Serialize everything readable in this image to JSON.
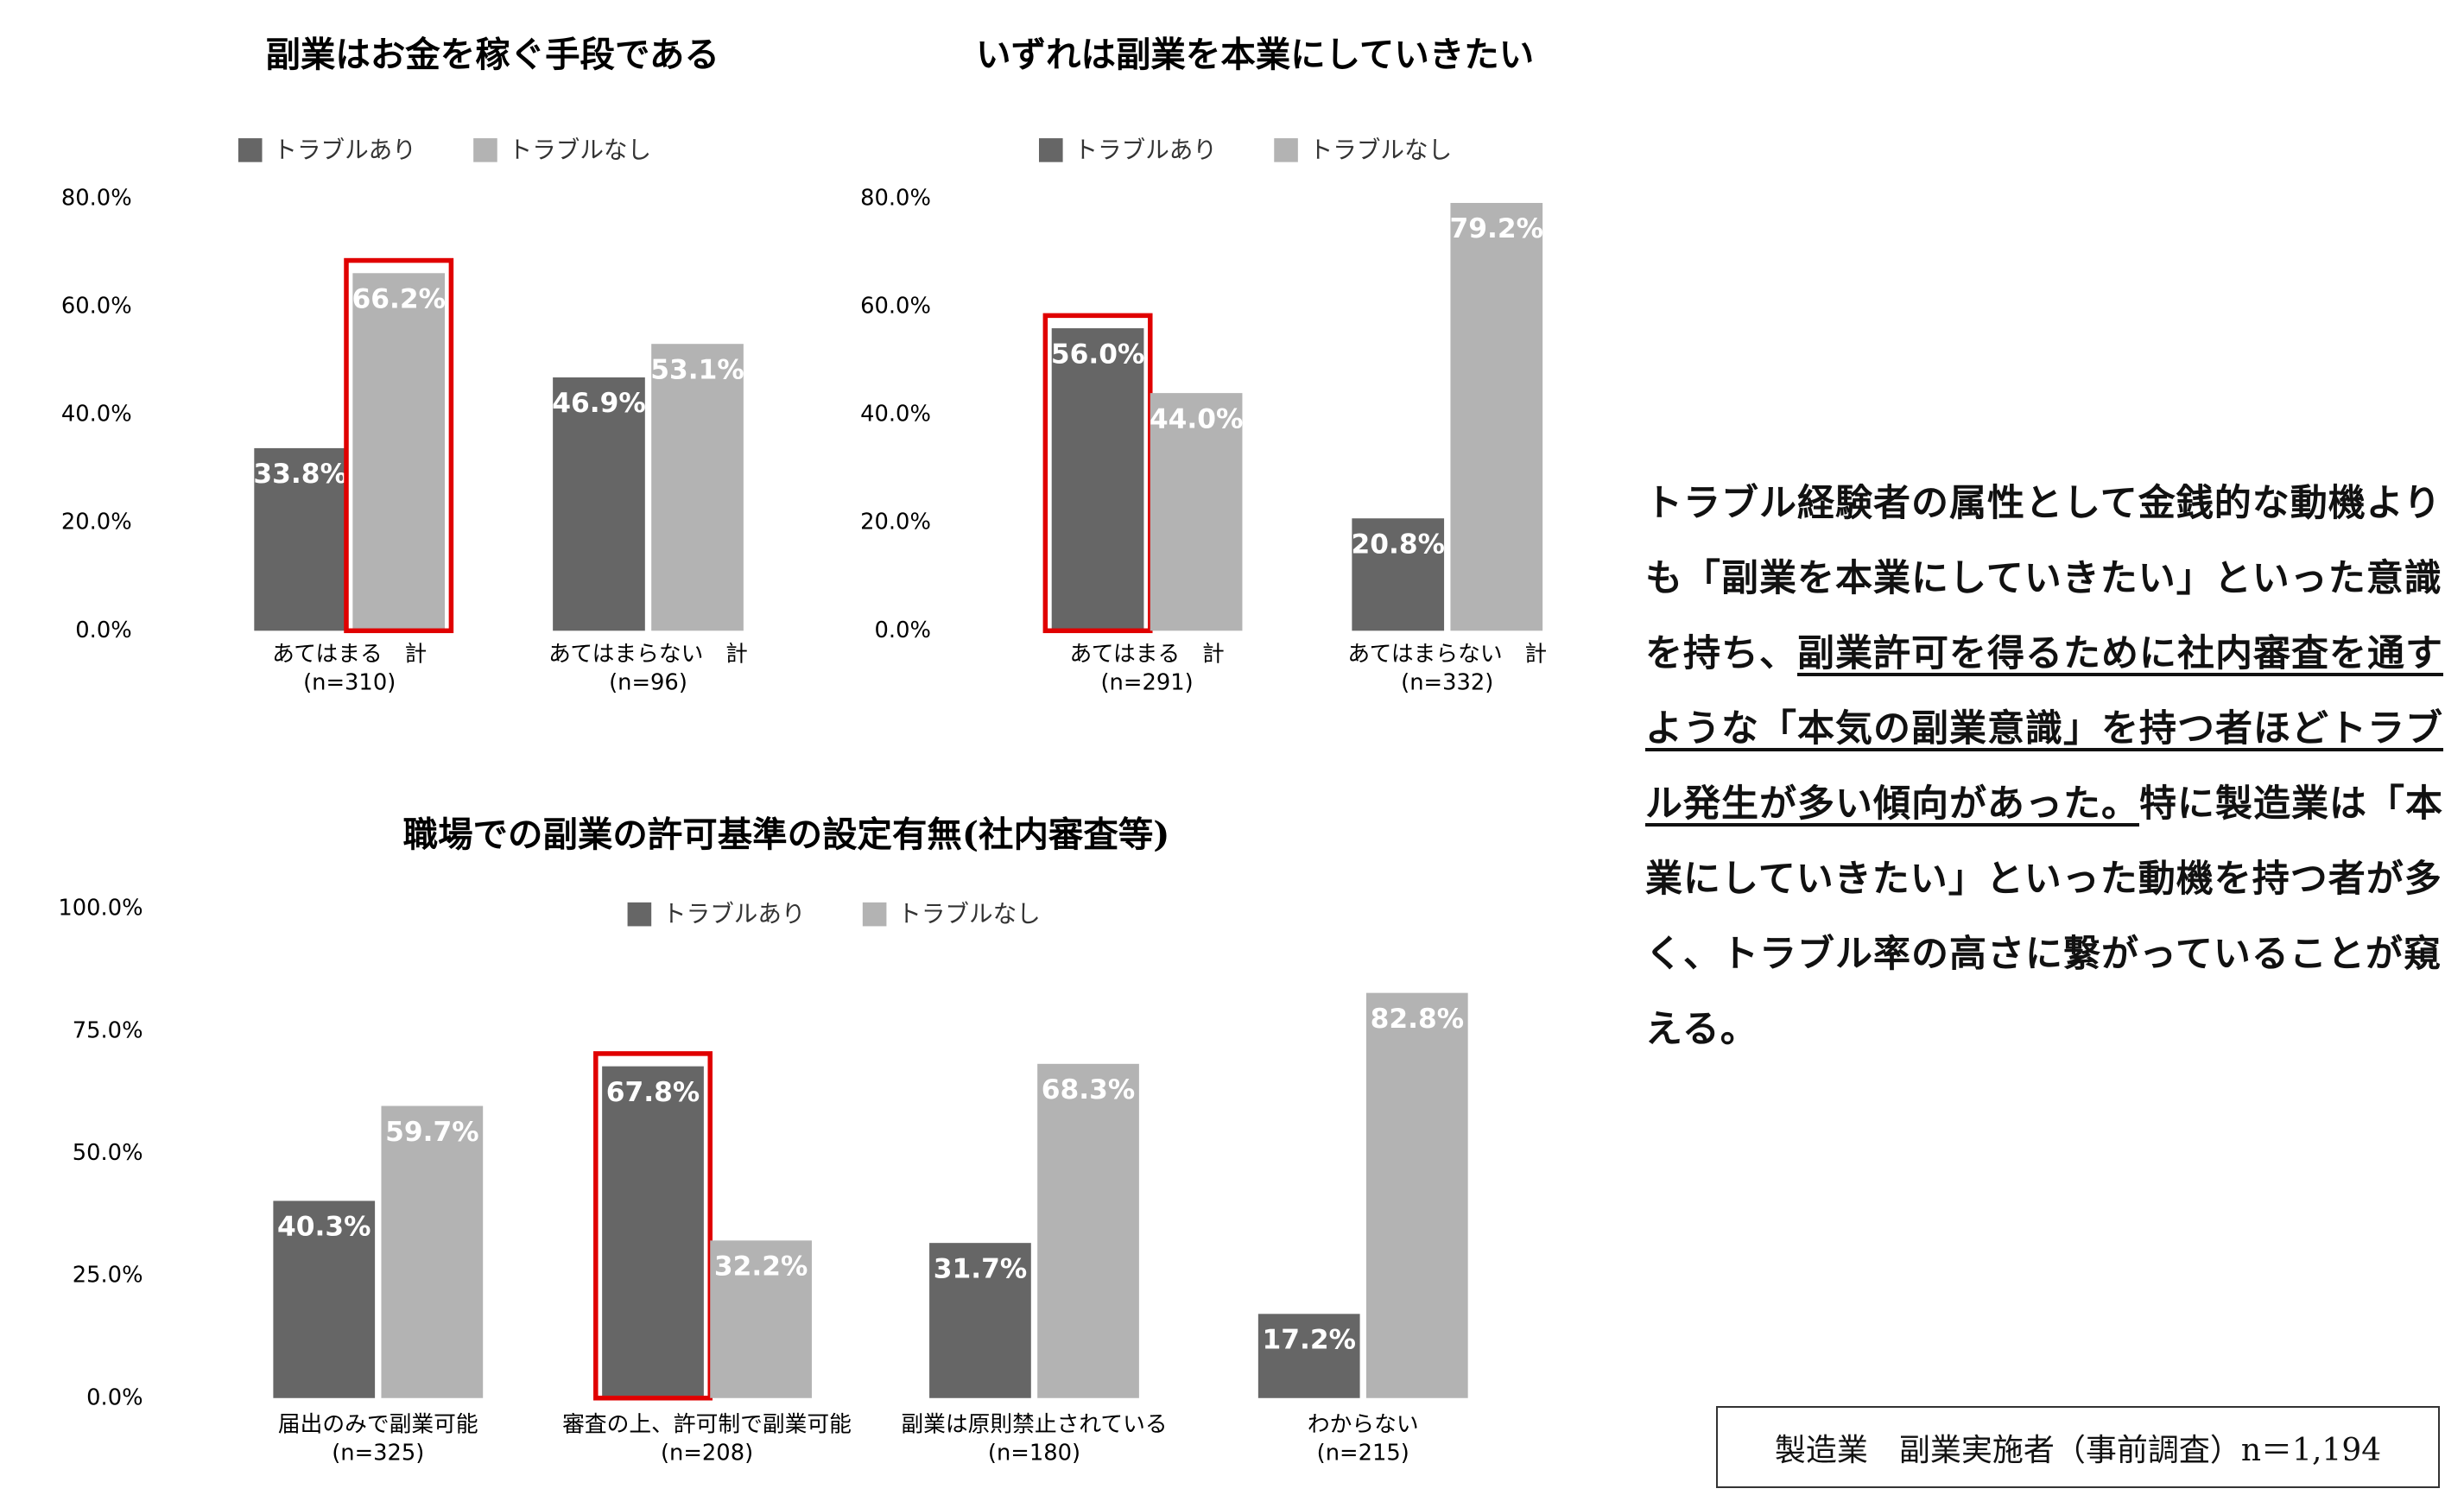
{
  "chart_data": [
    {
      "type": "bar",
      "title": "副業はお金を稼ぐ手段である",
      "categories": [
        "あてはまる　計",
        "あてはまらない　計"
      ],
      "sample_sizes": [
        "(n=310)",
        "(n=96)"
      ],
      "series": [
        {
          "name": "トラブルあり",
          "color": "#666666",
          "values": [
            33.8,
            46.9
          ],
          "value_labels": [
            "33.8%",
            "46.9%"
          ]
        },
        {
          "name": "トラブルなし",
          "color": "#b3b3b3",
          "values": [
            66.2,
            53.1
          ],
          "value_labels": [
            "66.2%",
            "53.1%"
          ]
        }
      ],
      "ylim": [
        0,
        80
      ],
      "yticks": [
        {
          "value": 0,
          "label": "0.0%"
        },
        {
          "value": 20,
          "label": "20.0%"
        },
        {
          "value": 40,
          "label": "40.0%"
        },
        {
          "value": 60,
          "label": "60.0%"
        },
        {
          "value": 80,
          "label": "80.0%"
        }
      ],
      "highlight": {
        "category": 0,
        "series": 1,
        "color": "#e00000"
      }
    },
    {
      "type": "bar",
      "title": "いずれは副業を本業にしていきたい",
      "categories": [
        "あてはまる　計",
        "あてはまらない　計"
      ],
      "sample_sizes": [
        "(n=291)",
        "(n=332)"
      ],
      "series": [
        {
          "name": "トラブルあり",
          "color": "#666666",
          "values": [
            56.0,
            20.8
          ],
          "value_labels": [
            "56.0%",
            "20.8%"
          ]
        },
        {
          "name": "トラブルなし",
          "color": "#b3b3b3",
          "values": [
            44.0,
            79.2
          ],
          "value_labels": [
            "44.0%",
            "79.2%"
          ]
        }
      ],
      "ylim": [
        0,
        80
      ],
      "yticks": [
        {
          "value": 0,
          "label": "0.0%"
        },
        {
          "value": 20,
          "label": "20.0%"
        },
        {
          "value": 40,
          "label": "40.0%"
        },
        {
          "value": 60,
          "label": "60.0%"
        },
        {
          "value": 80,
          "label": "80.0%"
        }
      ],
      "highlight": {
        "category": 0,
        "series": 0,
        "color": "#e00000"
      }
    },
    {
      "type": "bar",
      "title": "職場での副業の許可基準の設定有無(社内審査等)",
      "categories": [
        "届出のみで副業可能",
        "審査の上、許可制で副業可能",
        "副業は原則禁止されている",
        "わからない"
      ],
      "sample_sizes": [
        "(n=325)",
        "(n=208)",
        "(n=180)",
        "(n=215)"
      ],
      "series": [
        {
          "name": "トラブルあり",
          "color": "#666666",
          "values": [
            40.3,
            67.8,
            31.7,
            17.2
          ],
          "value_labels": [
            "40.3%",
            "67.8%",
            "31.7%",
            "17.2%"
          ]
        },
        {
          "name": "トラブルなし",
          "color": "#b3b3b3",
          "values": [
            59.7,
            32.2,
            68.3,
            82.8
          ],
          "value_labels": [
            "59.7%",
            "32.2%",
            "68.3%",
            "82.8%"
          ]
        }
      ],
      "ylim": [
        0,
        100
      ],
      "yticks": [
        {
          "value": 0,
          "label": "0.0%"
        },
        {
          "value": 25,
          "label": "25.0%"
        },
        {
          "value": 50,
          "label": "50.0%"
        },
        {
          "value": 75,
          "label": "75.0%"
        },
        {
          "value": 100,
          "label": "100.0%"
        }
      ],
      "highlight": {
        "category": 1,
        "series": 0,
        "color": "#e00000"
      }
    }
  ],
  "commentary": [
    {
      "text": "トラブル経験者の属性として金銭的な動機よりも「副業を本業にしていきたい」といった意識を持ち、",
      "underline": false
    },
    {
      "text": "副業許可を得るために社内審査を通すような「本気の副業意識」を持つ者ほどトラブル発生が多い傾向があった。",
      "underline": true
    },
    {
      "text": "特に製造業は「本業にしていきたい」といった動機を持つ者が多く、トラブル率の高さに繋がっていることが窺える。",
      "underline": false
    }
  ],
  "footnote": "製造業　副業実施者（事前調査）n＝1,194"
}
